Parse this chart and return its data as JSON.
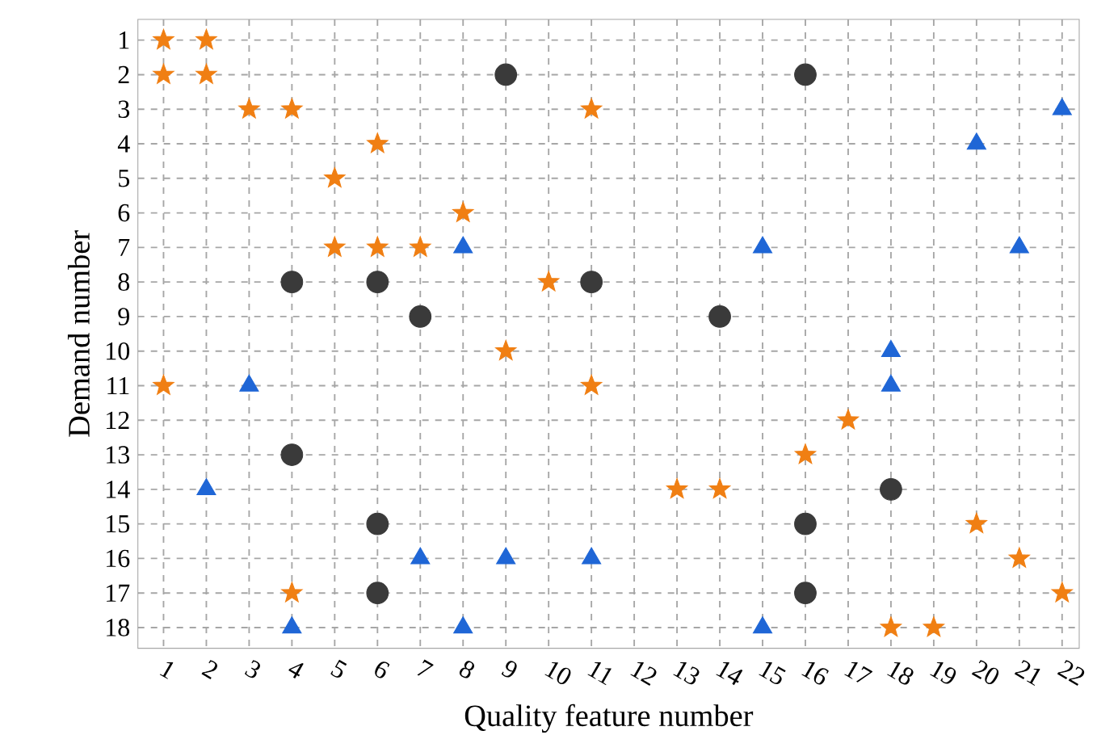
{
  "chart_data": {
    "type": "scatter",
    "xlabel": "Quality feature number",
    "ylabel": "Demand number",
    "xlim": [
      0.4,
      22.4
    ],
    "ylim": [
      18.6,
      0.4
    ],
    "xticks": [
      1,
      2,
      3,
      4,
      5,
      6,
      7,
      8,
      9,
      10,
      11,
      12,
      13,
      14,
      15,
      16,
      17,
      18,
      19,
      20,
      21,
      22
    ],
    "yticks": [
      1,
      2,
      3,
      4,
      5,
      6,
      7,
      8,
      9,
      10,
      11,
      12,
      13,
      14,
      15,
      16,
      17,
      18
    ],
    "grid": true,
    "series": [
      {
        "color": "#f07f13",
        "marker": "star",
        "x": [
          1,
          2,
          1,
          2,
          3,
          4,
          11,
          6,
          5,
          8,
          5,
          6,
          7,
          10,
          9,
          1,
          11,
          17,
          16,
          13,
          14,
          20,
          21,
          4,
          22,
          18,
          19
        ],
        "values": [
          1,
          1,
          2,
          2,
          3,
          3,
          3,
          4,
          5,
          6,
          7,
          7,
          7,
          8,
          10,
          11,
          11,
          12,
          13,
          14,
          14,
          15,
          16,
          17,
          17,
          18,
          18
        ]
      },
      {
        "color": "#3a3a3a",
        "marker": "circle",
        "x": [
          9,
          16,
          4,
          6,
          11,
          7,
          14,
          4,
          18,
          6,
          16,
          6,
          16
        ],
        "values": [
          2,
          2,
          8,
          8,
          8,
          9,
          9,
          13,
          14,
          15,
          15,
          17,
          17
        ]
      },
      {
        "color": "#1f66d6",
        "marker": "triangle",
        "x": [
          22,
          20,
          8,
          15,
          21,
          18,
          3,
          18,
          2,
          7,
          9,
          11,
          4,
          8,
          15
        ],
        "values": [
          3,
          4,
          7,
          7,
          7,
          10,
          11,
          11,
          14,
          16,
          16,
          16,
          18,
          18,
          18
        ]
      }
    ]
  }
}
